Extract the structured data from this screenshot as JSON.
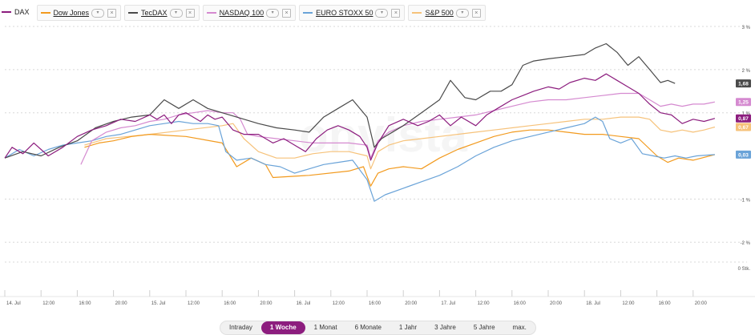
{
  "legend": {
    "items": [
      {
        "label": "DAX",
        "color": "#8c1d7e",
        "first": true
      },
      {
        "label": "Dow Jones",
        "color": "#f29a1e"
      },
      {
        "label": "TecDAX",
        "color": "#4a4a4a"
      },
      {
        "label": "NASDAQ 100",
        "color": "#d58ad0"
      },
      {
        "label": "EURO STOXX 50",
        "color": "#6aa3d8"
      },
      {
        "label": "S&P 500",
        "color": "#f6c27a"
      }
    ],
    "chevron_icon": "chevron-down-icon",
    "close_icon": "close-icon"
  },
  "watermark": "onvista",
  "range_buttons": [
    {
      "label": "Intraday"
    },
    {
      "label": "1 Woche",
      "active": true
    },
    {
      "label": "1 Monat"
    },
    {
      "label": "6 Monate"
    },
    {
      "label": "1 Jahr"
    },
    {
      "label": "3 Jahre"
    },
    {
      "label": "5 Jahre"
    },
    {
      "label": "max."
    }
  ],
  "chart_data": {
    "type": "line",
    "title": "",
    "xlabel": "",
    "ylabel": "",
    "ylim": [
      -2.2,
      3
    ],
    "y_ticks": [
      {
        "v": 3,
        "label": "3 %"
      },
      {
        "v": 2,
        "label": "2 %"
      },
      {
        "v": 1,
        "label": "1 %"
      },
      {
        "v": -1,
        "label": "-1 %"
      },
      {
        "v": -2,
        "label": "-2 %"
      }
    ],
    "volume_label": "0 Stk.",
    "x_ticks": [
      "14. Jul",
      "12:00",
      "16:00",
      "20:00",
      "15. Jul",
      "12:00",
      "16:00",
      "20:00",
      "16. Jul",
      "12:00",
      "16:00",
      "20:00",
      "17. Jul",
      "12:00",
      "16:00",
      "20:00",
      "18. Jul",
      "12:00",
      "16:00",
      "20:00"
    ],
    "grid": "horizontal dashed",
    "end_labels": [
      {
        "series": "TecDAX",
        "label": "1,68"
      },
      {
        "series": "NASDAQ 100",
        "label": "1,25"
      },
      {
        "series": "DAX",
        "label": "0,87"
      },
      {
        "series": "S&P 500",
        "label": "0,67"
      },
      {
        "series": "EURO STOXX 50",
        "label": "0,03"
      }
    ],
    "series": [
      {
        "name": "DAX",
        "color": "#8c1d7e",
        "values": [
          [
            0,
            -0.05
          ],
          [
            0.2,
            0.2
          ],
          [
            0.5,
            0.05
          ],
          [
            0.8,
            0.3
          ],
          [
            1.2,
            0.0
          ],
          [
            1.6,
            0.2
          ],
          [
            2.0,
            0.45
          ],
          [
            2.4,
            0.6
          ],
          [
            2.8,
            0.7
          ],
          [
            3.2,
            0.85
          ],
          [
            3.6,
            0.8
          ],
          [
            4.0,
            0.95
          ],
          [
            4.2,
            0.85
          ],
          [
            4.4,
            0.95
          ],
          [
            4.6,
            0.75
          ],
          [
            4.8,
            0.95
          ],
          [
            5.0,
            1.0
          ],
          [
            5.2,
            0.9
          ],
          [
            5.4,
            0.8
          ],
          [
            5.6,
            0.95
          ],
          [
            5.8,
            0.85
          ],
          [
            6.0,
            0.9
          ],
          [
            6.3,
            0.6
          ],
          [
            6.6,
            0.5
          ],
          [
            7.0,
            0.5
          ],
          [
            7.4,
            0.3
          ],
          [
            7.7,
            0.4
          ],
          [
            8.0,
            0.25
          ],
          [
            8.3,
            0.1
          ],
          [
            8.6,
            0.4
          ],
          [
            8.9,
            0.6
          ],
          [
            9.2,
            0.7
          ],
          [
            9.5,
            0.6
          ],
          [
            9.8,
            0.45
          ],
          [
            10.0,
            0.2
          ],
          [
            10.1,
            -0.1
          ],
          [
            10.3,
            0.3
          ],
          [
            10.6,
            0.7
          ],
          [
            11.0,
            0.85
          ],
          [
            11.4,
            0.7
          ],
          [
            11.7,
            0.8
          ],
          [
            12.0,
            0.95
          ],
          [
            12.3,
            0.7
          ],
          [
            12.6,
            0.9
          ],
          [
            13.0,
            0.7
          ],
          [
            13.3,
            0.95
          ],
          [
            13.6,
            1.1
          ],
          [
            14.0,
            1.3
          ],
          [
            14.3,
            1.4
          ],
          [
            14.6,
            1.5
          ],
          [
            15.0,
            1.6
          ],
          [
            15.3,
            1.55
          ],
          [
            15.6,
            1.7
          ],
          [
            16.0,
            1.8
          ],
          [
            16.3,
            1.75
          ],
          [
            16.6,
            1.9
          ],
          [
            16.9,
            1.75
          ],
          [
            17.2,
            1.6
          ],
          [
            17.5,
            1.45
          ],
          [
            17.8,
            1.2
          ],
          [
            18.1,
            1.0
          ],
          [
            18.4,
            0.95
          ],
          [
            18.7,
            0.75
          ],
          [
            19.0,
            0.85
          ],
          [
            19.3,
            0.8
          ],
          [
            19.6,
            0.87
          ]
        ]
      },
      {
        "name": "Dow Jones",
        "color": "#f29a1e",
        "values": [
          [
            2.2,
            0.2
          ],
          [
            2.6,
            0.3
          ],
          [
            3.0,
            0.35
          ],
          [
            3.5,
            0.45
          ],
          [
            4.0,
            0.5
          ],
          [
            5.0,
            0.45
          ],
          [
            6.0,
            0.3
          ],
          [
            6.4,
            -0.25
          ],
          [
            6.8,
            -0.05
          ],
          [
            7.2,
            -0.2
          ],
          [
            7.4,
            -0.5
          ],
          [
            8.4,
            -0.45
          ],
          [
            9.5,
            -0.35
          ],
          [
            9.9,
            -0.25
          ],
          [
            10.1,
            -0.7
          ],
          [
            10.3,
            -0.4
          ],
          [
            10.6,
            -0.3
          ],
          [
            11.0,
            -0.25
          ],
          [
            11.5,
            -0.3
          ],
          [
            12.0,
            -0.05
          ],
          [
            12.5,
            0.15
          ],
          [
            13.0,
            0.3
          ],
          [
            13.5,
            0.45
          ],
          [
            14.0,
            0.55
          ],
          [
            14.5,
            0.6
          ],
          [
            15.0,
            0.6
          ],
          [
            15.5,
            0.55
          ],
          [
            16.0,
            0.5
          ],
          [
            16.5,
            0.5
          ],
          [
            17.0,
            0.45
          ],
          [
            17.5,
            0.4
          ],
          [
            18.0,
            0.0
          ],
          [
            18.3,
            -0.15
          ],
          [
            18.6,
            -0.05
          ],
          [
            19.0,
            -0.1
          ],
          [
            19.6,
            0.03
          ]
        ]
      },
      {
        "name": "TecDAX",
        "color": "#4a4a4a",
        "values": [
          [
            0,
            -0.05
          ],
          [
            0.5,
            0.1
          ],
          [
            1.0,
            0.0
          ],
          [
            1.5,
            0.2
          ],
          [
            2.0,
            0.35
          ],
          [
            2.5,
            0.65
          ],
          [
            3.0,
            0.8
          ],
          [
            3.5,
            0.9
          ],
          [
            4.0,
            0.95
          ],
          [
            4.4,
            1.3
          ],
          [
            4.8,
            1.1
          ],
          [
            5.2,
            1.3
          ],
          [
            5.6,
            1.1
          ],
          [
            6.0,
            1.0
          ],
          [
            6.4,
            0.9
          ],
          [
            7.0,
            0.75
          ],
          [
            7.5,
            0.65
          ],
          [
            8.0,
            0.6
          ],
          [
            8.4,
            0.55
          ],
          [
            8.8,
            0.9
          ],
          [
            9.2,
            1.1
          ],
          [
            9.6,
            1.3
          ],
          [
            10.0,
            0.9
          ],
          [
            10.2,
            0.2
          ],
          [
            10.4,
            0.4
          ],
          [
            11.0,
            0.7
          ],
          [
            11.5,
            1.0
          ],
          [
            12.0,
            1.3
          ],
          [
            12.3,
            1.75
          ],
          [
            12.7,
            1.35
          ],
          [
            13.0,
            1.3
          ],
          [
            13.4,
            1.5
          ],
          [
            13.7,
            1.5
          ],
          [
            14.0,
            1.65
          ],
          [
            14.3,
            2.1
          ],
          [
            14.6,
            2.2
          ],
          [
            15.0,
            2.25
          ],
          [
            15.5,
            2.3
          ],
          [
            16.0,
            2.35
          ],
          [
            16.3,
            2.5
          ],
          [
            16.6,
            2.6
          ],
          [
            16.9,
            2.4
          ],
          [
            17.2,
            2.1
          ],
          [
            17.5,
            2.3
          ],
          [
            17.8,
            2.0
          ],
          [
            18.1,
            1.7
          ],
          [
            18.3,
            1.75
          ],
          [
            18.5,
            1.68
          ]
        ]
      },
      {
        "name": "NASDAQ 100",
        "color": "#d58ad0",
        "values": [
          [
            2.1,
            -0.2
          ],
          [
            2.4,
            0.35
          ],
          [
            2.8,
            0.55
          ],
          [
            3.2,
            0.65
          ],
          [
            3.6,
            0.7
          ],
          [
            4.0,
            0.8
          ],
          [
            4.4,
            0.85
          ],
          [
            4.8,
            0.95
          ],
          [
            5.2,
            1.0
          ],
          [
            5.6,
            1.05
          ],
          [
            6.0,
            1.0
          ],
          [
            6.3,
            1.0
          ],
          [
            6.5,
            0.85
          ],
          [
            6.7,
            0.5
          ],
          [
            7.0,
            0.45
          ],
          [
            7.5,
            0.4
          ],
          [
            8.0,
            0.35
          ],
          [
            8.5,
            0.3
          ],
          [
            9.0,
            0.3
          ],
          [
            9.5,
            0.3
          ],
          [
            10.0,
            0.25
          ],
          [
            10.1,
            -0.05
          ],
          [
            10.3,
            0.35
          ],
          [
            10.6,
            0.55
          ],
          [
            11.0,
            0.7
          ],
          [
            11.5,
            0.8
          ],
          [
            12.0,
            0.85
          ],
          [
            12.5,
            0.9
          ],
          [
            13.0,
            0.95
          ],
          [
            13.5,
            1.05
          ],
          [
            14.0,
            1.15
          ],
          [
            14.5,
            1.25
          ],
          [
            15.0,
            1.3
          ],
          [
            15.5,
            1.3
          ],
          [
            16.0,
            1.35
          ],
          [
            16.5,
            1.4
          ],
          [
            17.0,
            1.45
          ],
          [
            17.5,
            1.45
          ],
          [
            17.8,
            1.3
          ],
          [
            18.1,
            1.15
          ],
          [
            18.4,
            1.2
          ],
          [
            18.7,
            1.15
          ],
          [
            19.0,
            1.2
          ],
          [
            19.3,
            1.2
          ],
          [
            19.6,
            1.25
          ]
        ]
      },
      {
        "name": "EURO STOXX 50",
        "color": "#6aa3d8",
        "values": [
          [
            0,
            -0.05
          ],
          [
            0.4,
            0.15
          ],
          [
            0.8,
            0.0
          ],
          [
            1.2,
            0.15
          ],
          [
            1.6,
            0.25
          ],
          [
            2.0,
            0.3
          ],
          [
            2.4,
            0.35
          ],
          [
            2.8,
            0.45
          ],
          [
            3.2,
            0.5
          ],
          [
            3.6,
            0.6
          ],
          [
            4.0,
            0.7
          ],
          [
            4.4,
            0.75
          ],
          [
            4.8,
            0.8
          ],
          [
            5.2,
            0.75
          ],
          [
            5.6,
            0.75
          ],
          [
            5.9,
            0.7
          ],
          [
            6.1,
            0.1
          ],
          [
            6.4,
            -0.1
          ],
          [
            6.8,
            -0.05
          ],
          [
            7.2,
            -0.2
          ],
          [
            7.6,
            -0.25
          ],
          [
            8.0,
            -0.4
          ],
          [
            8.4,
            -0.3
          ],
          [
            8.8,
            -0.2
          ],
          [
            9.2,
            -0.15
          ],
          [
            9.6,
            -0.1
          ],
          [
            10.0,
            -0.55
          ],
          [
            10.2,
            -1.05
          ],
          [
            10.5,
            -0.9
          ],
          [
            11.0,
            -0.75
          ],
          [
            11.5,
            -0.6
          ],
          [
            12.0,
            -0.45
          ],
          [
            12.5,
            -0.25
          ],
          [
            13.0,
            0.0
          ],
          [
            13.5,
            0.2
          ],
          [
            14.0,
            0.35
          ],
          [
            14.5,
            0.45
          ],
          [
            15.0,
            0.55
          ],
          [
            15.5,
            0.65
          ],
          [
            16.0,
            0.75
          ],
          [
            16.3,
            0.9
          ],
          [
            16.5,
            0.8
          ],
          [
            16.7,
            0.4
          ],
          [
            17.0,
            0.3
          ],
          [
            17.3,
            0.4
          ],
          [
            17.6,
            0.05
          ],
          [
            17.9,
            0.0
          ],
          [
            18.2,
            -0.05
          ],
          [
            18.5,
            0.0
          ],
          [
            18.8,
            -0.05
          ],
          [
            19.1,
            0.0
          ],
          [
            19.6,
            0.03
          ]
        ]
      },
      {
        "name": "S&P 500",
        "color": "#f6c27a",
        "values": [
          [
            2.2,
            0.25
          ],
          [
            2.8,
            0.4
          ],
          [
            3.4,
            0.45
          ],
          [
            4.0,
            0.5
          ],
          [
            5.0,
            0.6
          ],
          [
            6.0,
            0.7
          ],
          [
            6.3,
            0.75
          ],
          [
            6.6,
            0.4
          ],
          [
            7.0,
            0.1
          ],
          [
            7.5,
            -0.05
          ],
          [
            8.0,
            -0.05
          ],
          [
            8.5,
            0.05
          ],
          [
            9.0,
            0.1
          ],
          [
            9.5,
            0.1
          ],
          [
            10.0,
            0.0
          ],
          [
            10.1,
            -0.3
          ],
          [
            10.3,
            0.1
          ],
          [
            10.6,
            0.25
          ],
          [
            11.0,
            0.35
          ],
          [
            11.5,
            0.4
          ],
          [
            12.0,
            0.45
          ],
          [
            12.5,
            0.5
          ],
          [
            13.0,
            0.55
          ],
          [
            13.5,
            0.6
          ],
          [
            14.0,
            0.65
          ],
          [
            14.5,
            0.7
          ],
          [
            15.0,
            0.75
          ],
          [
            15.5,
            0.8
          ],
          [
            16.0,
            0.85
          ],
          [
            16.5,
            0.85
          ],
          [
            17.0,
            0.9
          ],
          [
            17.5,
            0.9
          ],
          [
            17.8,
            0.85
          ],
          [
            18.1,
            0.6
          ],
          [
            18.4,
            0.55
          ],
          [
            18.7,
            0.6
          ],
          [
            19.0,
            0.55
          ],
          [
            19.3,
            0.6
          ],
          [
            19.6,
            0.67
          ]
        ]
      }
    ]
  }
}
